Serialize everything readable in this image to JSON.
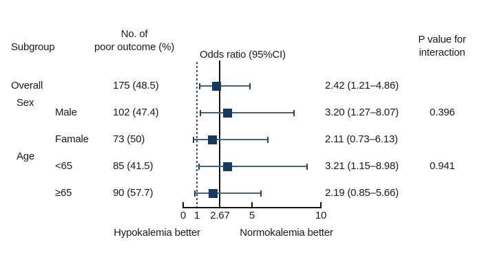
{
  "figure": {
    "headers": {
      "subgroup": "Subgroup",
      "outcome": [
        "No. of",
        "poor outcome (%)"
      ],
      "odds_ratio": "Odds ratio (95%CI)",
      "p_value": [
        "P value for",
        "interaction"
      ]
    }
  },
  "chart_data": {
    "type": "forest",
    "title": "",
    "x_axis": {
      "range": [
        0,
        10
      ],
      "scale": "linear",
      "tick_values": [
        0,
        1,
        2.67,
        5,
        10
      ],
      "tick_labels": [
        "0",
        "1",
        "2.67",
        "5",
        "10"
      ],
      "tick_marks": [
        0,
        5,
        10
      ],
      "reference_line_dashed": 1,
      "reference_line_solid": 2.67,
      "left_direction_label": "Hypokalemia better",
      "right_direction_label": "Normokalemia better"
    },
    "rows": [
      {
        "group_label": "",
        "label": "Overall",
        "indent": false,
        "n_pct": "175 (48.5)",
        "or": 2.42,
        "ci_low": 1.21,
        "ci_high": 4.86,
        "or_text": "2.42 (1.21–4.86)",
        "p_interaction": ""
      },
      {
        "group_label": "Sex",
        "label": "Male",
        "indent": true,
        "n_pct": "102 (47.4)",
        "or": 3.2,
        "ci_low": 1.27,
        "ci_high": 8.07,
        "or_text": "3.20 (1.27–8.07)",
        "p_interaction": "0.396"
      },
      {
        "group_label": "",
        "label": "Famale",
        "indent": true,
        "n_pct": "73 (50)",
        "or": 2.11,
        "ci_low": 0.73,
        "ci_high": 6.13,
        "or_text": "2.11 (0.73–6.13)",
        "p_interaction": ""
      },
      {
        "group_label": "Age",
        "label": "<65",
        "indent": true,
        "n_pct": "85 (41.5)",
        "or": 3.21,
        "ci_low": 1.15,
        "ci_high": 8.98,
        "or_text": "3.21 (1.15–8.98)",
        "p_interaction": "0.941"
      },
      {
        "group_label": "",
        "label": "≥65",
        "indent": true,
        "n_pct": "90 (57.7)",
        "or": 2.19,
        "ci_low": 0.85,
        "ci_high": 5.66,
        "or_text": "2.19 (0.85–5.66)",
        "p_interaction": ""
      }
    ],
    "colors": {
      "marker": "#143a60",
      "whisker": "#3d6384",
      "whisker_cap": "#1e4468",
      "axis": "#111111",
      "text": "#1a1a1a"
    }
  }
}
